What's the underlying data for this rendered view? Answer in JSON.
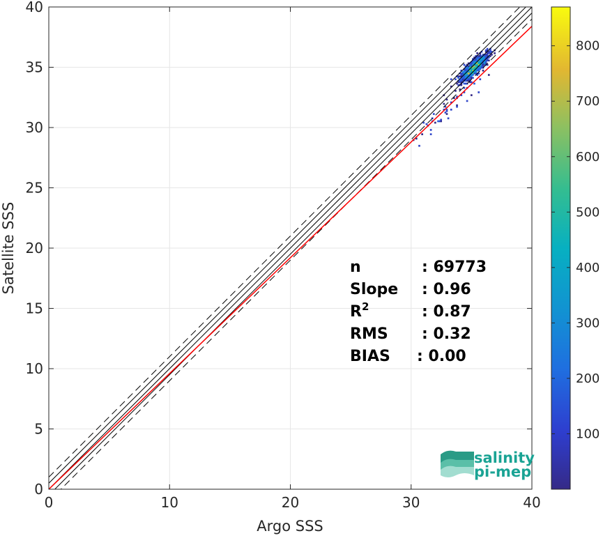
{
  "chart_data": {
    "type": "heatmap",
    "xlabel": "Argo SSS",
    "ylabel": "Satellite SSS",
    "xlim": [
      0,
      40
    ],
    "ylim": [
      0,
      40
    ],
    "xticks": [
      0,
      10,
      20,
      30,
      40
    ],
    "yticks": [
      0,
      5,
      10,
      15,
      20,
      25,
      30,
      35,
      40
    ],
    "grid": true,
    "colormap": "parula",
    "colorbar": {
      "range": [
        0,
        870
      ],
      "ticks": [
        100,
        200,
        300,
        400,
        500,
        600,
        700,
        800
      ]
    },
    "density_core": {
      "x_center": 35.2,
      "y_center": 35.0,
      "x_range": [
        28.5,
        37
      ],
      "y_range": [
        26.5,
        37
      ]
    },
    "reference_lines": [
      {
        "name": "1:1 line",
        "slope": 1,
        "intercept": 0,
        "color": "#000000",
        "style": "solid"
      },
      {
        "name": "+/-0.5 bounds",
        "slope": 1,
        "intercept": 0.5,
        "color": "#000000",
        "style": "solid"
      },
      {
        "name": "+/-1 bounds",
        "slope": 1,
        "intercept": 1.0,
        "color": "#000000",
        "style": "dashed"
      },
      {
        "name": "fit",
        "slope": 0.96,
        "intercept": 0.0,
        "color": "#ff0000",
        "style": "solid"
      }
    ],
    "stats": [
      {
        "label": "n",
        "value": ": 69773"
      },
      {
        "label": "Slope",
        "value": ": 0.96"
      },
      {
        "label": "R",
        "sup": "2",
        "value": ": 0.87"
      },
      {
        "label": "RMS",
        "value": ": 0.32"
      },
      {
        "label": "BIAS",
        "value": ": 0.00"
      }
    ]
  },
  "logo": {
    "line1": "salinity",
    "line2": "pi-mep",
    "color": "#1aa394"
  }
}
